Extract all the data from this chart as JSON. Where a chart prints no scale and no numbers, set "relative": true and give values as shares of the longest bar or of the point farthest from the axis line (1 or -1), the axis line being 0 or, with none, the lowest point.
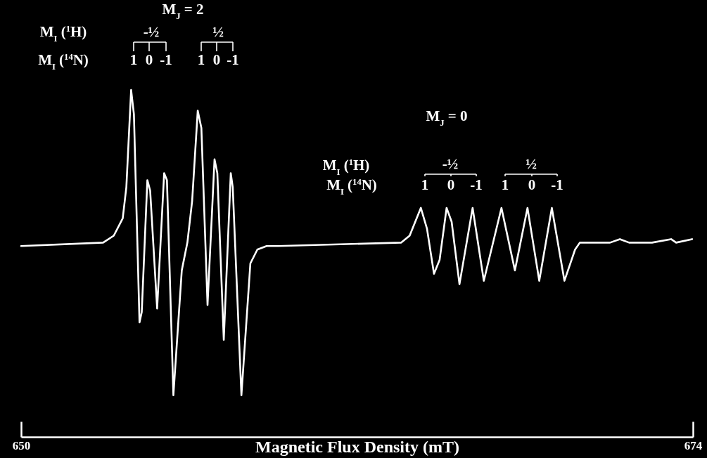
{
  "chart_data": {
    "type": "line",
    "relative": true,
    "xlabel": "Magnetic Flux Density (mT)",
    "xlim": [
      650,
      674
    ],
    "xticks": [
      650,
      674
    ],
    "grid": false,
    "marker": "none",
    "line_style": "solid",
    "x": [
      650.0,
      652.93,
      653.31,
      653.63,
      653.76,
      653.93,
      654.03,
      654.23,
      654.31,
      654.51,
      654.61,
      654.86,
      655.11,
      655.21,
      655.44,
      655.74,
      655.94,
      656.11,
      656.31,
      656.44,
      656.66,
      656.91,
      657.01,
      657.24,
      657.49,
      657.56,
      657.87,
      658.19,
      658.44,
      658.77,
      659.19,
      663.58,
      663.88,
      664.28,
      664.5,
      664.75,
      664.95,
      665.2,
      665.38,
      665.66,
      666.13,
      666.53,
      667.16,
      667.64,
      668.09,
      668.51,
      668.96,
      669.41,
      669.79,
      669.96,
      670.39,
      671.04,
      671.39,
      671.72,
      672.54,
      673.22,
      673.4,
      673.97
    ],
    "series": [
      {
        "color": "#ffffff",
        "values": [
          0.55,
          0.56,
          0.58,
          0.63,
          0.72,
          1.0,
          0.93,
          0.33,
          0.36,
          0.74,
          0.71,
          0.37,
          0.76,
          0.74,
          0.12,
          0.48,
          0.56,
          0.68,
          0.94,
          0.89,
          0.38,
          0.8,
          0.76,
          0.28,
          0.76,
          0.72,
          0.12,
          0.5,
          0.54,
          0.55,
          0.55,
          0.56,
          0.58,
          0.66,
          0.6,
          0.47,
          0.51,
          0.66,
          0.62,
          0.44,
          0.66,
          0.45,
          0.66,
          0.48,
          0.66,
          0.45,
          0.66,
          0.45,
          0.54,
          0.56,
          0.56,
          0.56,
          0.57,
          0.56,
          0.56,
          0.57,
          0.56,
          0.57
        ]
      }
    ],
    "annotations": [
      "M$_{J}$ = 2",
      "M$_{I}$ ($^{1}$H)",
      "-½",
      "½",
      "M$_{I}$ ($^{14}$N)",
      "1",
      "0",
      "-1",
      "1",
      "0",
      "-1",
      "M$_{J}$ = 0",
      "M$_{I}$ ($^{1}$H)",
      "-½",
      "½",
      "M$_{I}$ ($^{14}$N)",
      "1",
      "0",
      "-1",
      "1",
      "0",
      "-1"
    ]
  }
}
